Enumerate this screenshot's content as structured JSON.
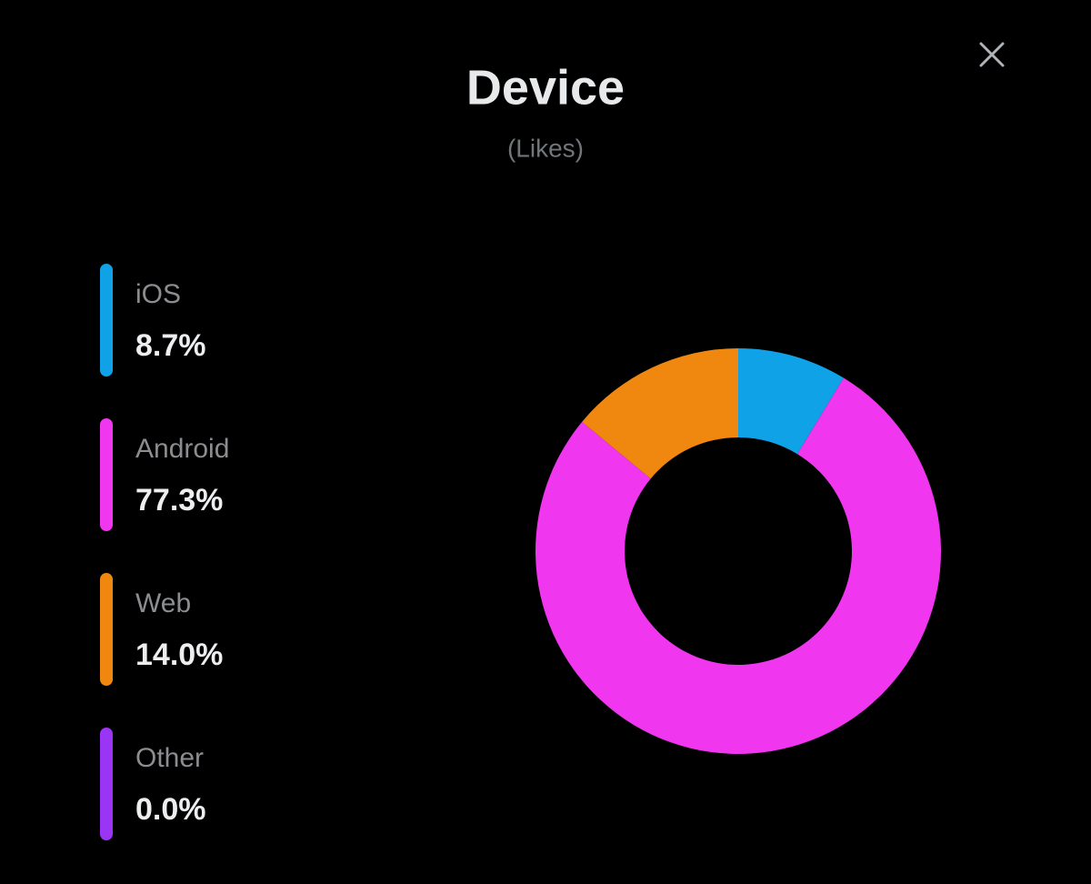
{
  "chart_data": {
    "type": "pie",
    "title": "Device",
    "subtitle": "(Likes)",
    "categories": [
      "iOS",
      "Android",
      "Web",
      "Other"
    ],
    "values": [
      8.7,
      77.3,
      14.0,
      0.0
    ],
    "value_labels": [
      "8.7%",
      "77.3%",
      "14.0%",
      "0.0%"
    ],
    "colors": [
      "#10a2e6",
      "#f037ef",
      "#f0870f",
      "#9b35f5"
    ],
    "donut": true
  }
}
